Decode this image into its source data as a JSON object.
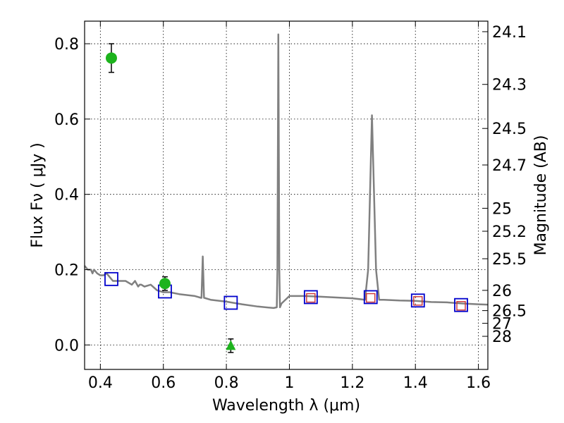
{
  "chart_data": {
    "type": "line",
    "title": "",
    "xlabel": "Wavelength  λ (μm)",
    "ylabel": "Flux  Fν  ( μJy )",
    "ylabel_right": "Magnitude (AB)",
    "xlim": [
      0.35,
      1.63
    ],
    "ylim": [
      -0.065,
      0.86
    ],
    "grid": true,
    "x_ticks": [
      {
        "v": 0.4,
        "label": "0.4"
      },
      {
        "v": 0.6,
        "label": "0.6"
      },
      {
        "v": 0.8,
        "label": "0.8"
      },
      {
        "v": 1.0,
        "label": "1"
      },
      {
        "v": 1.2,
        "label": "1.2"
      },
      {
        "v": 1.4,
        "label": "1.4"
      },
      {
        "v": 1.6,
        "label": "1.6"
      }
    ],
    "y_ticks": [
      {
        "v": 0.0,
        "label": "0.0"
      },
      {
        "v": 0.2,
        "label": "0.2"
      },
      {
        "v": 0.4,
        "label": "0.4"
      },
      {
        "v": 0.6,
        "label": "0.6"
      },
      {
        "v": 0.8,
        "label": "0.8"
      }
    ],
    "mag_ticks": [
      {
        "v": 0.832,
        "label": "24.1"
      },
      {
        "v": 0.692,
        "label": "24.3"
      },
      {
        "v": 0.575,
        "label": "24.5"
      },
      {
        "v": 0.478,
        "label": "24.7"
      },
      {
        "v": 0.363,
        "label": "25"
      },
      {
        "v": 0.302,
        "label": "25.2"
      },
      {
        "v": 0.229,
        "label": "25.5"
      },
      {
        "v": 0.145,
        "label": "26"
      },
      {
        "v": 0.0912,
        "label": "26.5"
      },
      {
        "v": 0.0575,
        "label": "27"
      },
      {
        "v": 0.0229,
        "label": "28"
      }
    ],
    "series": [
      {
        "kind": "spectrum",
        "color": "#808080",
        "x": [
          0.35,
          0.36,
          0.37,
          0.375,
          0.38,
          0.39,
          0.4,
          0.41,
          0.42,
          0.44,
          0.46,
          0.48,
          0.5,
          0.51,
          0.52,
          0.525,
          0.53,
          0.54,
          0.56,
          0.58,
          0.6,
          0.62,
          0.65,
          0.7,
          0.72,
          0.721,
          0.725,
          0.729,
          0.73,
          0.75,
          0.8,
          0.85,
          0.9,
          0.95,
          0.96,
          0.962,
          0.965,
          0.968,
          0.97,
          0.975,
          1.0,
          1.05,
          1.1,
          1.15,
          1.2,
          1.24,
          1.25,
          1.262,
          1.275,
          1.285,
          1.3,
          1.35,
          1.4,
          1.45,
          1.5,
          1.55,
          1.6,
          1.63
        ],
        "y": [
          0.21,
          0.2,
          0.2,
          0.19,
          0.2,
          0.19,
          0.185,
          0.185,
          0.19,
          0.17,
          0.17,
          0.17,
          0.16,
          0.17,
          0.155,
          0.16,
          0.16,
          0.155,
          0.16,
          0.145,
          0.14,
          0.14,
          0.135,
          0.13,
          0.125,
          0.125,
          0.235,
          0.125,
          0.125,
          0.12,
          0.115,
          0.108,
          0.102,
          0.098,
          0.1,
          0.2,
          0.825,
          0.2,
          0.1,
          0.11,
          0.13,
          0.13,
          0.128,
          0.126,
          0.124,
          0.12,
          0.2,
          0.61,
          0.2,
          0.12,
          0.12,
          0.118,
          0.117,
          0.114,
          0.113,
          0.11,
          0.108,
          0.107
        ]
      },
      {
        "kind": "observed",
        "points": [
          {
            "x": 0.435,
            "y": 0.762,
            "err": 0.038,
            "marker": "circle",
            "color": "#1db31d"
          },
          {
            "x": 0.605,
            "y": 0.163,
            "err": 0.018,
            "marker": "circle",
            "color": "#1db31d"
          },
          {
            "x": 0.814,
            "y": -0.002,
            "err": 0.018,
            "marker": "triangle",
            "color": "#1db31d"
          }
        ]
      },
      {
        "kind": "model-blue",
        "color": "#0000cc",
        "points": [
          {
            "x": 0.435,
            "y": 0.175
          },
          {
            "x": 0.605,
            "y": 0.142
          },
          {
            "x": 0.814,
            "y": 0.112
          },
          {
            "x": 1.068,
            "y": 0.127
          },
          {
            "x": 1.258,
            "y": 0.127
          },
          {
            "x": 1.408,
            "y": 0.118
          },
          {
            "x": 1.545,
            "y": 0.106
          }
        ]
      },
      {
        "kind": "model-red",
        "color": "#cc3333",
        "points": [
          {
            "x": 1.068,
            "y": 0.125
          },
          {
            "x": 1.258,
            "y": 0.125
          },
          {
            "x": 1.408,
            "y": 0.117
          },
          {
            "x": 1.545,
            "y": 0.104
          }
        ]
      }
    ]
  }
}
